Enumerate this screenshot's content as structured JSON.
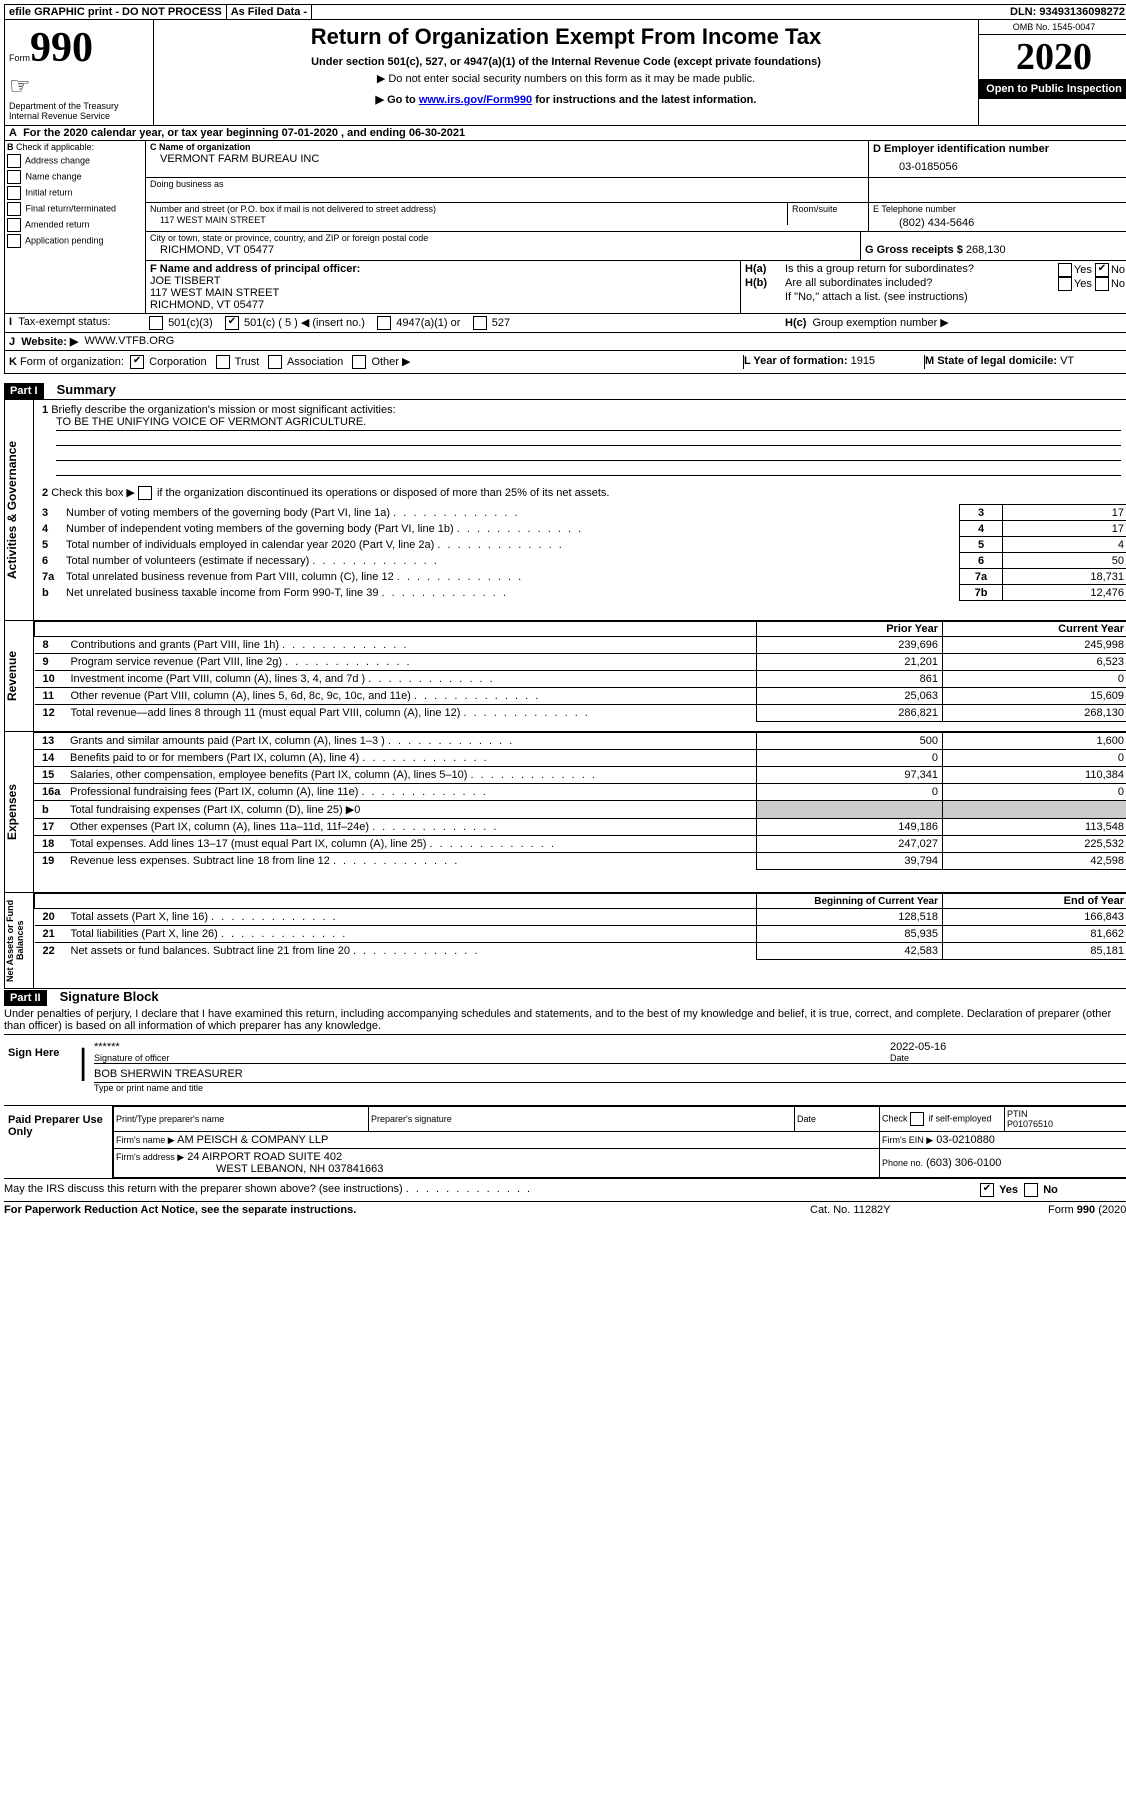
{
  "header_bar": {
    "efile": "efile GRAPHIC print - DO NOT PROCESS",
    "as_filed": "As Filed Data -",
    "dln_label": "DLN:",
    "dln": "93493136098272"
  },
  "top": {
    "form_label": "Form",
    "form_no": "990",
    "dept": "Department of the Treasury",
    "irs": "Internal Revenue Service",
    "title": "Return of Organization Exempt From Income Tax",
    "subtitle": "Under section 501(c), 527, or 4947(a)(1) of the Internal Revenue Code (except private foundations)",
    "note1": "▶ Do not enter social security numbers on this form as it may be made public.",
    "note2_pre": "▶ Go to ",
    "note2_link": "www.irs.gov/Form990",
    "note2_post": " for instructions and the latest information.",
    "omb": "OMB No. 1545-0047",
    "year": "2020",
    "open": "Open to Public Inspection"
  },
  "A": {
    "line": "For the 2020 calendar year, or tax year beginning 07-01-2020   , and ending 06-30-2021"
  },
  "B": {
    "label": "Check if applicable:",
    "opts": [
      "Address change",
      "Name change",
      "Initial return",
      "Final return/terminated",
      "Amended return",
      "Application pending"
    ]
  },
  "C": {
    "name_label": "C Name of organization",
    "name": "VERMONT FARM BUREAU INC",
    "dba_label": "Doing business as",
    "street_label": "Number and street (or P.O. box if mail is not delivered to street address)",
    "room_label": "Room/suite",
    "street": "117 WEST MAIN STREET",
    "city_label": "City or town, state or province, country, and ZIP or foreign postal code",
    "city": "RICHMOND, VT  05477"
  },
  "D": {
    "label": "D Employer identification number",
    "val": "03-0185056"
  },
  "E": {
    "label": "E Telephone number",
    "val": "(802) 434-5646"
  },
  "G": {
    "label": "G Gross receipts $",
    "val": "268,130"
  },
  "F": {
    "label": "F  Name and address of principal officer:",
    "name": "JOE TISBERT",
    "street": "117 WEST MAIN STREET",
    "city": "RICHMOND, VT  05477"
  },
  "H": {
    "a": "Is this a group return for subordinates?",
    "b": "Are all subordinates included?",
    "note": "If \"No,\" attach a list. (see instructions)",
    "c": "Group exemption number ▶",
    "yes": "Yes",
    "no": "No",
    "ha_label": "H(a)",
    "hb_label": "H(b)",
    "hc_label": "H(c)"
  },
  "I": {
    "label": "Tax-exempt status:",
    "o1": "501(c)(3)",
    "o2": "501(c) ( 5 ) ◀ (insert no.)",
    "o3": "4947(a)(1) or",
    "o4": "527"
  },
  "J": {
    "label": "Website: ▶",
    "val": "WWW.VTFB.ORG"
  },
  "K": {
    "label": "Form of organization:",
    "opts": [
      "Corporation",
      "Trust",
      "Association",
      "Other ▶"
    ]
  },
  "L": {
    "label": "L Year of formation:",
    "val": "1915"
  },
  "M": {
    "label": "M State of legal domicile:",
    "val": "VT"
  },
  "partI": {
    "title": "Part I",
    "heading": "Summary",
    "q1": "Briefly describe the organization's mission or most significant activities:",
    "mission": "TO BE THE UNIFYING VOICE OF VERMONT AGRICULTURE.",
    "q2": "Check this box ▶       if the organization discontinued its operations or disposed of more than 25% of its net assets.",
    "rows_top": [
      {
        "n": "3",
        "t": "Number of voting members of the governing body (Part VI, line 1a)",
        "ln": "3",
        "v": "17"
      },
      {
        "n": "4",
        "t": "Number of independent voting members of the governing body (Part VI, line 1b)",
        "ln": "4",
        "v": "17"
      },
      {
        "n": "5",
        "t": "Total number of individuals employed in calendar year 2020 (Part V, line 2a)",
        "ln": "5",
        "v": "4"
      },
      {
        "n": "6",
        "t": "Total number of volunteers (estimate if necessary)",
        "ln": "6",
        "v": "50"
      },
      {
        "n": "7a",
        "t": "Total unrelated business revenue from Part VIII, column (C), line 12",
        "ln": "7a",
        "v": "18,731"
      },
      {
        "n": "b",
        "t": "Net unrelated business taxable income from Form 990-T, line 39",
        "ln": "7b",
        "v": "12,476"
      }
    ],
    "col_prior": "Prior Year",
    "col_current": "Current Year",
    "revenue": [
      {
        "n": "8",
        "t": "Contributions and grants (Part VIII, line 1h)",
        "p": "239,696",
        "c": "245,998"
      },
      {
        "n": "9",
        "t": "Program service revenue (Part VIII, line 2g)",
        "p": "21,201",
        "c": "6,523"
      },
      {
        "n": "10",
        "t": "Investment income (Part VIII, column (A), lines 3, 4, and 7d )",
        "p": "861",
        "c": "0"
      },
      {
        "n": "11",
        "t": "Other revenue (Part VIII, column (A), lines 5, 6d, 8c, 9c, 10c, and 11e)",
        "p": "25,063",
        "c": "15,609"
      },
      {
        "n": "12",
        "t": "Total revenue—add lines 8 through 11 (must equal Part VIII, column (A), line 12)",
        "p": "286,821",
        "c": "268,130"
      }
    ],
    "expenses": [
      {
        "n": "13",
        "t": "Grants and similar amounts paid (Part IX, column (A), lines 1–3 )",
        "p": "500",
        "c": "1,600"
      },
      {
        "n": "14",
        "t": "Benefits paid to or for members (Part IX, column (A), line 4)",
        "p": "0",
        "c": "0"
      },
      {
        "n": "15",
        "t": "Salaries, other compensation, employee benefits (Part IX, column (A), lines 5–10)",
        "p": "97,341",
        "c": "110,384"
      },
      {
        "n": "16a",
        "t": "Professional fundraising fees (Part IX, column (A), line 11e)",
        "p": "0",
        "c": "0"
      },
      {
        "n": "b",
        "t": "Total fundraising expenses (Part IX, column (D), line 25) ▶0",
        "p": "",
        "c": ""
      },
      {
        "n": "17",
        "t": "Other expenses (Part IX, column (A), lines 11a–11d, 11f–24e)",
        "p": "149,186",
        "c": "113,548"
      },
      {
        "n": "18",
        "t": "Total expenses. Add lines 13–17 (must equal Part IX, column (A), line 25)",
        "p": "247,027",
        "c": "225,532"
      },
      {
        "n": "19",
        "t": "Revenue less expenses. Subtract line 18 from line 12",
        "p": "39,794",
        "c": "42,598"
      }
    ],
    "col_begin": "Beginning of Current Year",
    "col_end": "End of Year",
    "netassets": [
      {
        "n": "20",
        "t": "Total assets (Part X, line 16)",
        "p": "128,518",
        "c": "166,843"
      },
      {
        "n": "21",
        "t": "Total liabilities (Part X, line 26)",
        "p": "85,935",
        "c": "81,662"
      },
      {
        "n": "22",
        "t": "Net assets or fund balances. Subtract line 21 from line 20",
        "p": "42,583",
        "c": "85,181"
      }
    ],
    "side_ag": "Activities & Governance",
    "side_rev": "Revenue",
    "side_exp": "Expenses",
    "side_na": "Net Assets or Fund Balances"
  },
  "partII": {
    "title": "Part II",
    "heading": "Signature Block",
    "perjury": "Under penalties of perjury, I declare that I have examined this return, including accompanying schedules and statements, and to the best of my knowledge and belief, it is true, correct, and complete. Declaration of preparer (other than officer) is based on all information of which preparer has any knowledge."
  },
  "sign": {
    "here": "Sign Here",
    "stars": "******",
    "sig_label": "Signature of officer",
    "date": "2022-05-16",
    "date_label": "Date",
    "name": "BOB SHERWIN  TREASURER",
    "name_label": "Type or print name and title"
  },
  "paid": {
    "title": "Paid Preparer Use Only",
    "print_label": "Print/Type preparer's name",
    "sig_label": "Preparer's signature",
    "date_label": "Date",
    "check_label": "Check        if self-employed",
    "ptin_label": "PTIN",
    "ptin": "P01076510",
    "firm_name_label": "Firm's name    ▶",
    "firm_name": "AM PEISCH & COMPANY LLP",
    "firm_ein_label": "Firm's EIN ▶",
    "firm_ein": "03-0210880",
    "firm_addr_label": "Firm's address ▶",
    "firm_addr1": "24 AIRPORT ROAD SUITE 402",
    "firm_addr2": "WEST LEBANON, NH  037841663",
    "phone_label": "Phone no.",
    "phone": "(603) 306-0100"
  },
  "footer": {
    "irs_q": "May the IRS discuss this return with the preparer shown above? (see instructions)",
    "yes": "Yes",
    "no": "No",
    "paperwork": "For Paperwork Reduction Act Notice, see the separate instructions.",
    "cat": "Cat. No. 11282Y",
    "form": "Form 990 (2020)"
  }
}
